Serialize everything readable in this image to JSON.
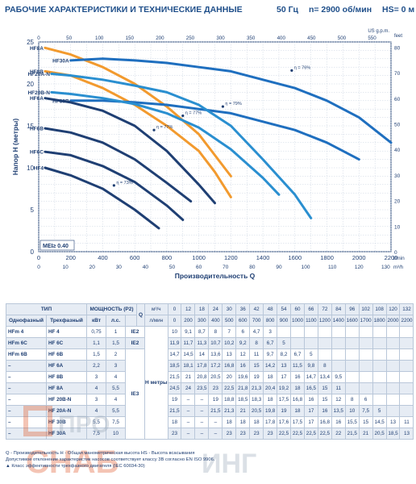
{
  "header": {
    "title": "РАБОЧИЕ ХАРАКТЕРИСТИКИ И ТЕХНИЧЕСКИЕ ДАННЫЕ",
    "freq": "50 Гц",
    "speed": "n= 2900 об/мин",
    "hs": "HS= 0 м"
  },
  "chart_data": {
    "type": "line",
    "title": "",
    "xlabel": "Производительность Q",
    "ylabel": "Напор H (метры)",
    "x_unit_main": "l/min",
    "x_unit_sec": "m³/h",
    "x_unit_top": "US g.p.m.",
    "y_unit_right": "feet",
    "xlim": [
      0,
      2200
    ],
    "ylim": [
      0,
      25
    ],
    "x_ticks": [
      0,
      200,
      400,
      600,
      800,
      1000,
      1200,
      1400,
      1600,
      1800,
      2000,
      2200
    ],
    "y_ticks": [
      0,
      5,
      10,
      15,
      20,
      25
    ],
    "m3h_ticks": [
      0,
      10,
      20,
      30,
      40,
      50,
      60,
      70,
      80,
      90,
      100,
      110,
      120,
      130
    ],
    "gpm_ticks": [
      0,
      50,
      100,
      150,
      200,
      250,
      300,
      350,
      400,
      450,
      500,
      550
    ],
    "feet_ticks": [
      0,
      10,
      20,
      30,
      40,
      50,
      60,
      70,
      80
    ],
    "grid": true,
    "mei_label": "MEI≥ 0.40",
    "series": [
      {
        "name": "HF8A",
        "color": "#f29a2e",
        "x": [
          40,
          200,
          400,
          600,
          800,
          1000,
          1100,
          1200
        ],
        "y": [
          24.3,
          23.5,
          22,
          20,
          17.3,
          14,
          11.5,
          9
        ]
      },
      {
        "name": "HF8B",
        "color": "#f29a2e",
        "x": [
          40,
          200,
          400,
          600,
          800,
          1000,
          1100,
          1200
        ],
        "y": [
          21.5,
          21,
          19.5,
          17.5,
          15,
          12,
          9.5,
          6.5
        ]
      },
      {
        "name": "HF30A",
        "color": "#1f6fbf",
        "x": [
          200,
          400,
          600,
          800,
          1000,
          1200,
          1400,
          1600,
          1800,
          2000,
          2200
        ],
        "y": [
          22.8,
          23,
          22.8,
          22.5,
          22,
          21.5,
          20.5,
          19.5,
          18,
          16,
          13
        ]
      },
      {
        "name": "HF30B",
        "color": "#1f6fbf",
        "x": [
          200,
          400,
          600,
          800,
          1000,
          1200,
          1400,
          1600,
          1800,
          2000
        ],
        "y": [
          18,
          18,
          17.8,
          17.5,
          17,
          16.5,
          15.5,
          14.5,
          13,
          11
        ]
      },
      {
        "name": "HF20A-N",
        "color": "#2a8fd0",
        "x": [
          80,
          200,
          400,
          600,
          800,
          1000,
          1200,
          1400,
          1600,
          1700
        ],
        "y": [
          21.2,
          21,
          20.5,
          19.8,
          19,
          17.5,
          15,
          11,
          6.8,
          4
        ]
      },
      {
        "name": "HF20B-N",
        "color": "#2a8fd0",
        "x": [
          80,
          200,
          400,
          600,
          800,
          1000,
          1200,
          1400,
          1500
        ],
        "y": [
          19,
          18.8,
          18.3,
          17.6,
          16.5,
          14.8,
          12.2,
          8.8,
          6.8
        ]
      },
      {
        "name": "HF6A",
        "color": "#1f3f73",
        "x": [
          40,
          200,
          400,
          600,
          800,
          1000,
          1100
        ],
        "y": [
          18.3,
          17.8,
          16.8,
          15,
          12,
          8,
          5.8
        ]
      },
      {
        "name": "HF6B",
        "color": "#1f3f73",
        "x": [
          40,
          200,
          400,
          600,
          800,
          950
        ],
        "y": [
          14.7,
          14.2,
          13,
          11,
          8.2,
          6
        ]
      },
      {
        "name": "HF6C",
        "color": "#1f3f73",
        "x": [
          40,
          200,
          400,
          600,
          800,
          900
        ],
        "y": [
          11.9,
          11.5,
          10.2,
          8.3,
          5.5,
          3.8
        ]
      },
      {
        "name": "HF4",
        "color": "#1f3f73",
        "x": [
          40,
          200,
          400,
          600,
          750
        ],
        "y": [
          10,
          9.1,
          7.5,
          5,
          2.8
        ]
      }
    ],
    "annotations": [
      {
        "text": "η = 76%",
        "x": 1580,
        "y": 21.6
      },
      {
        "text": "η = 79%",
        "x": 1150,
        "y": 17.3
      },
      {
        "text": "η = 77%",
        "x": 900,
        "y": 16.2
      },
      {
        "text": "η = 77%",
        "x": 720,
        "y": 14.5
      },
      {
        "text": "η = 73%",
        "x": 470,
        "y": 7.9
      }
    ]
  },
  "table": {
    "head": {
      "type": "ТИП",
      "power": "МОЩНОСТЬ (P2)",
      "single": "Однофазный",
      "three": "Трехфазный",
      "kw": "кВт",
      "hp": "л.с.",
      "q_letter": "Q",
      "m3h": "м³/ч",
      "lmin": "л/мин",
      "h_label": "H метры"
    },
    "q_m3h": [
      "0",
      "12",
      "18",
      "24",
      "30",
      "36",
      "42",
      "48",
      "54",
      "60",
      "66",
      "72",
      "84",
      "96",
      "102",
      "108",
      "120",
      "132"
    ],
    "q_lmin": [
      "0",
      "200",
      "300",
      "400",
      "500",
      "600",
      "700",
      "800",
      "900",
      "1000",
      "1100",
      "1200",
      "1400",
      "1600",
      "1700",
      "1800",
      "2000",
      "2200"
    ],
    "rows": [
      {
        "single": "HFm 4",
        "three": "HF 4",
        "kw": "0,75",
        "hp": "1",
        "ie": "IE2",
        "h": [
          "10",
          "9,1",
          "8,7",
          "8",
          "7",
          "6",
          "4,7",
          "3",
          "",
          "",
          "",
          "",
          "",
          "",
          "",
          "",
          "",
          ""
        ]
      },
      {
        "single": "HFm 6C",
        "three": "HF 6C",
        "kw": "1,1",
        "hp": "1,5",
        "ie": "IE2",
        "h": [
          "11,9",
          "11,7",
          "11,3",
          "10,7",
          "10,2",
          "9,2",
          "8",
          "6,7",
          "5",
          "",
          "",
          "",
          "",
          "",
          "",
          "",
          "",
          ""
        ]
      },
      {
        "single": "HFm 6B",
        "three": "HF 6B",
        "kw": "1,5",
        "hp": "2",
        "ie": "",
        "h": [
          "14,7",
          "14,5",
          "14",
          "13,6",
          "13",
          "12",
          "11",
          "9,7",
          "8,2",
          "6,7",
          "5",
          "",
          "",
          "",
          "",
          "",
          "",
          ""
        ]
      },
      {
        "single": "–",
        "three": "HF 6A",
        "kw": "2,2",
        "hp": "3",
        "ie": "",
        "h": [
          "18,5",
          "18,1",
          "17,8",
          "17,2",
          "16,8",
          "16",
          "15",
          "14,2",
          "13",
          "11,5",
          "9,8",
          "8",
          "",
          "",
          "",
          "",
          "",
          ""
        ]
      },
      {
        "single": "–",
        "three": "HF 8B",
        "kw": "3",
        "hp": "4",
        "ie": "",
        "h": [
          "21,5",
          "21",
          "20,8",
          "20,5",
          "20",
          "19,6",
          "19",
          "18",
          "17",
          "16",
          "14,7",
          "13,4",
          "9,5",
          "",
          "",
          "",
          "",
          ""
        ]
      },
      {
        "single": "–",
        "three": "HF 8A",
        "kw": "4",
        "hp": "5,5",
        "ie": "",
        "h": [
          "24,5",
          "24",
          "23,5",
          "23",
          "22,5",
          "21,8",
          "21,3",
          "20,4",
          "19,2",
          "18",
          "16,5",
          "15",
          "11",
          "",
          "",
          "",
          "",
          ""
        ]
      },
      {
        "single": "–",
        "three": "HF 20B-N",
        "kw": "3",
        "hp": "4",
        "ie": "",
        "h": [
          "19",
          "–",
          "–",
          "19",
          "18,8",
          "18,5",
          "18,3",
          "18",
          "17,5",
          "16,8",
          "16",
          "15",
          "12",
          "8",
          "6",
          "",
          "",
          ""
        ]
      },
      {
        "single": "–",
        "three": "HF 20A-N",
        "kw": "4",
        "hp": "5,5",
        "ie": "",
        "h": [
          "21,5",
          "–",
          "–",
          "21,5",
          "21,3",
          "21",
          "20,5",
          "19,8",
          "19",
          "18",
          "17",
          "16",
          "13,5",
          "10",
          "7,5",
          "5",
          "",
          ""
        ]
      },
      {
        "single": "–",
        "three": "HF 30B",
        "kw": "5,5",
        "hp": "7,5",
        "ie": "",
        "h": [
          "18",
          "–",
          "–",
          "–",
          "18",
          "18",
          "18",
          "17,8",
          "17,6",
          "17,5",
          "17",
          "16,8",
          "16",
          "15,5",
          "15",
          "14,5",
          "13",
          "11"
        ]
      },
      {
        "single": "–",
        "three": "HF 30A",
        "kw": "7,5",
        "hp": "10",
        "ie": "",
        "h": [
          "23",
          "–",
          "–",
          "–",
          "23",
          "23",
          "23",
          "23",
          "22,5",
          "22,5",
          "22,5",
          "22,5",
          "22",
          "21,5",
          "21",
          "20,5",
          "18,5",
          "13"
        ]
      }
    ],
    "ie3_label": "IE3"
  },
  "notes": {
    "line1": "Q - Производительность  H - Общая манометрическая высота  HS - Высота всасывания",
    "line2": "Допустимое отклонение характеристик насосов соответствует классу 3B согласно EN ISO 9906.",
    "line3": "▲ Класс эффективности трехфазного двигателя (IEC 60034-30)"
  },
  "watermark": {
    "text1": "ПРО",
    "text2": "СНАБ",
    "text3": "ИНГ"
  }
}
